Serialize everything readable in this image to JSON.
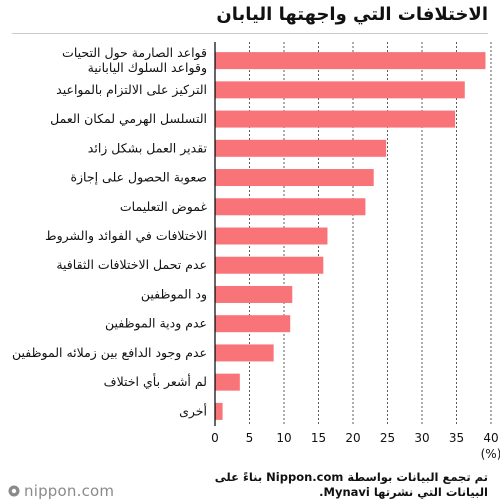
{
  "title": "الاختلافات التي واجهتها اليابان",
  "note": "تم تجمع البيانات بواسطة Nippon.com بناءً على البيانات التي نشرتها Mynavi.",
  "brand": {
    "logo_text": "nippon.com"
  },
  "colors": {
    "bar": "#f87478",
    "axis": "#000000",
    "grid": "#333333",
    "logo": "#8a8a8a"
  },
  "chart_data": {
    "type": "bar",
    "orientation": "horizontal",
    "categories": [
      [
        "قواعد الصارمة حول التحيات",
        "وقواعد السلوك اليابانية"
      ],
      [
        "التركيز على الالتزام بالمواعيد"
      ],
      [
        "التسلسل الهرمي لمكان العمل"
      ],
      [
        "تقدير العمل بشكل زائد"
      ],
      [
        "صعوبة الحصول على إجازة"
      ],
      [
        "غموض التعليمات"
      ],
      [
        "الاختلافات في الفوائد والشروط"
      ],
      [
        "عدم تحمل الاختلافات الثقافية"
      ],
      [
        "ود الموظفين"
      ],
      [
        "عدم ودية الموظفين"
      ],
      [
        "عدم وجود الدافع بين زملائه الموظفين"
      ],
      [
        "لم أشعر بأي اختلاف"
      ],
      [
        "أخرى"
      ]
    ],
    "values": [
      39.2,
      36.2,
      34.8,
      24.8,
      23.0,
      21.8,
      16.3,
      15.7,
      11.2,
      10.9,
      8.5,
      3.6,
      1.1
    ],
    "xlim": [
      0,
      40
    ],
    "xticks": [
      0,
      5,
      10,
      15,
      20,
      25,
      30,
      35,
      40
    ],
    "xlabel": "(%)",
    "grid": "vertical dashed",
    "legend": "none"
  }
}
